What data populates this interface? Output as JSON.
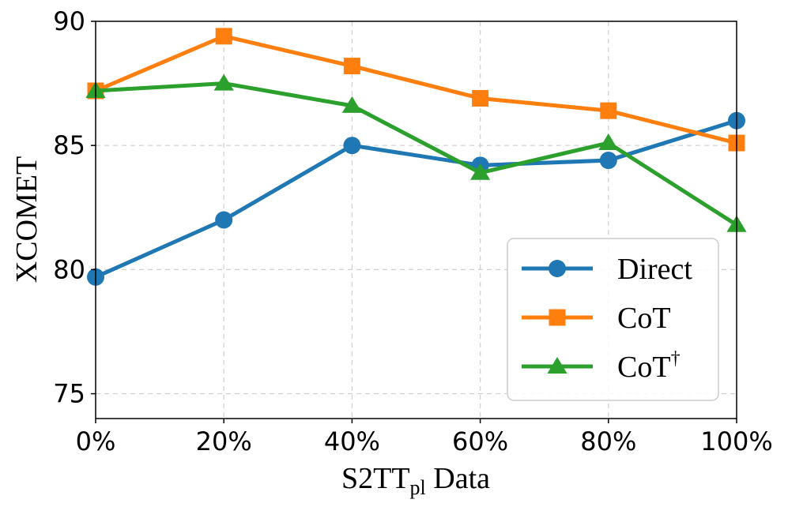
{
  "chart_data": {
    "type": "line",
    "title": "",
    "xlabel": {
      "main": "S2TT",
      "sub": "pl",
      "rest": " Data"
    },
    "ylabel": "XCOMET",
    "x_tick_labels": [
      "0%",
      "20%",
      "40%",
      "60%",
      "80%",
      "100%"
    ],
    "x": [
      0,
      20,
      40,
      60,
      80,
      100
    ],
    "xlim": [
      0,
      100
    ],
    "y_tick_labels": [
      "75",
      "80",
      "85",
      "90"
    ],
    "y_ticks": [
      75,
      80,
      85,
      90
    ],
    "ylim": [
      74.0,
      90.0
    ],
    "grid": true,
    "legend_position": "lower-right",
    "series": [
      {
        "name": "Direct",
        "sup": "",
        "color": "#1f77b4",
        "marker": "circle",
        "values": [
          79.7,
          82.0,
          85.0,
          84.2,
          84.4,
          86.0
        ]
      },
      {
        "name": "CoT",
        "sup": "",
        "color": "#ff7f0e",
        "marker": "square",
        "values": [
          87.2,
          89.4,
          88.2,
          86.9,
          86.4,
          85.1
        ]
      },
      {
        "name": "CoT",
        "sup": "†",
        "color": "#2ca02c",
        "marker": "triangle",
        "values": [
          87.2,
          87.5,
          86.6,
          83.9,
          85.1,
          81.8
        ]
      }
    ]
  }
}
